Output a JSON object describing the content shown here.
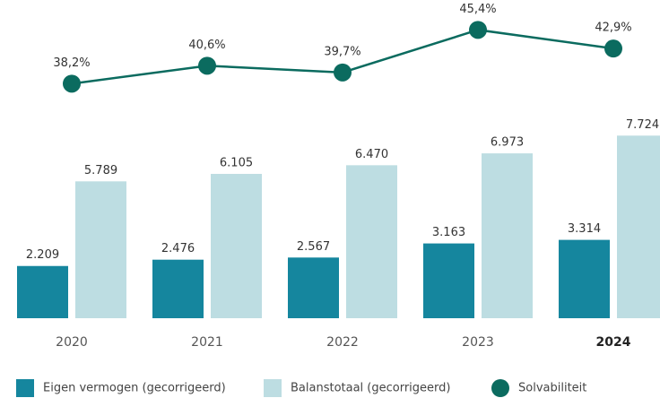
{
  "chart_data": {
    "type": "bar_line",
    "categories": [
      "2020",
      "2021",
      "2022",
      "2023",
      "2024"
    ],
    "series": [
      {
        "name": "Eigen vermogen (gecorrigeerd)",
        "color": "#15869e",
        "type": "bar",
        "values": [
          2209,
          2476,
          2567,
          3163,
          3314
        ],
        "value_labels": [
          "2.209",
          "2.476",
          "2.567",
          "3.163",
          "3.314"
        ]
      },
      {
        "name": "Balanstotaal (gecorrigeerd)",
        "color": "#bddde2",
        "type": "bar",
        "values": [
          5789,
          6105,
          6470,
          6973,
          7724
        ],
        "value_labels": [
          "5.789",
          "6.105",
          "6.470",
          "6.973",
          "7.724"
        ]
      },
      {
        "name": "Solvabiliteit",
        "color": "#0b6b5f",
        "type": "line",
        "axis": "y2",
        "values": [
          38.2,
          40.6,
          39.7,
          45.4,
          42.9
        ],
        "value_labels": [
          "38,2%",
          "40,6%",
          "39,7%",
          "45,4%",
          "42,9%"
        ]
      }
    ],
    "ylim": [
      0,
      8000
    ],
    "y2lim": [
      35,
      47
    ],
    "legend": "bottom"
  }
}
